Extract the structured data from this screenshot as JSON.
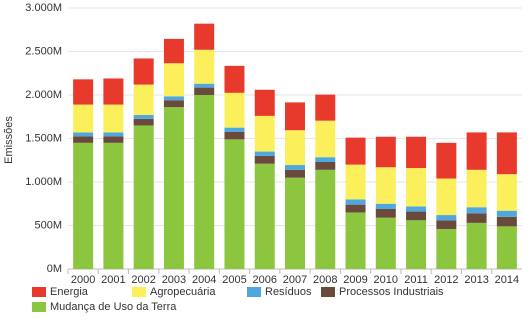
{
  "chart_data": {
    "type": "stacked-bar",
    "y_label": "Emissões",
    "categories": [
      "2000",
      "2001",
      "2002",
      "2003",
      "2004",
      "2005",
      "2006",
      "2007",
      "2008",
      "2009",
      "2010",
      "2011",
      "2012",
      "2013",
      "2014"
    ],
    "series": [
      {
        "name": "Energia",
        "color": "#e8392d",
        "values": [
          290,
          300,
          300,
          280,
          300,
          310,
          300,
          320,
          300,
          310,
          350,
          360,
          410,
          430,
          480
        ]
      },
      {
        "name": "Agropecuária",
        "color": "#fbf05c",
        "values": [
          320,
          320,
          350,
          380,
          390,
          400,
          410,
          400,
          420,
          400,
          420,
          440,
          420,
          430,
          420
        ]
      },
      {
        "name": "Resíduos",
        "color": "#4fa7e0",
        "values": [
          45,
          45,
          45,
          45,
          45,
          50,
          50,
          55,
          55,
          60,
          60,
          60,
          60,
          70,
          70
        ]
      },
      {
        "name": "Processos Industriais",
        "color": "#6b4a3e",
        "values": [
          75,
          75,
          75,
          80,
          85,
          85,
          90,
          90,
          90,
          90,
          100,
          100,
          100,
          110,
          110
        ]
      },
      {
        "name": "Mudança de Uso da Terra",
        "color": "#8cc63f",
        "values": [
          1450,
          1450,
          1650,
          1860,
          2000,
          1490,
          1210,
          1050,
          1140,
          650,
          590,
          560,
          460,
          530,
          490
        ]
      }
    ],
    "ylim": [
      0,
      3000
    ],
    "yticks": [
      {
        "value": 0,
        "label": "0M"
      },
      {
        "value": 500,
        "label": "500M"
      },
      {
        "value": 1000,
        "label": "1.000M"
      },
      {
        "value": 1500,
        "label": "1.500M"
      },
      {
        "value": 2000,
        "label": "2.000M"
      },
      {
        "value": 2500,
        "label": "2.500M"
      },
      {
        "value": 3000,
        "label": "3.000M"
      }
    ],
    "grid": true
  }
}
